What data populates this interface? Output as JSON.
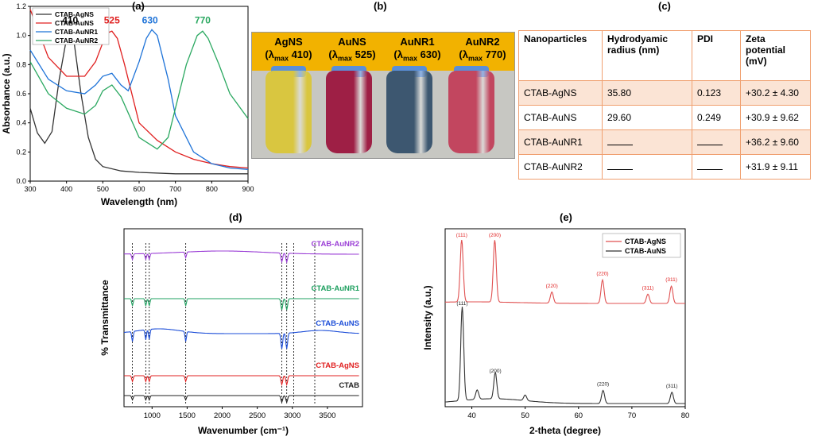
{
  "panels": {
    "a": "(a)",
    "b": "(b)",
    "c": "(c)",
    "d": "(d)",
    "e": "(e)"
  },
  "chart_data": [
    {
      "type": "line",
      "panel": "a",
      "xlabel": "Wavelength (nm)",
      "ylabel": "Absorbance (a.u.)",
      "xlim": [
        300,
        900
      ],
      "ylim": [
        0.0,
        1.2
      ],
      "xticks": [
        "300",
        "400",
        "500",
        "600",
        "700",
        "800",
        "900"
      ],
      "yticks": [
        "0.0",
        "0.2",
        "0.4",
        "0.6",
        "0.8",
        "1.0",
        "1.2"
      ],
      "legend_position": "top-left",
      "peak_labels": [
        {
          "text": "410",
          "x": 410,
          "y": 1.06,
          "color": "#000000"
        },
        {
          "text": "525",
          "x": 525,
          "y": 1.06,
          "color": "#e02020"
        },
        {
          "text": "630",
          "x": 630,
          "y": 1.06,
          "color": "#1e73d8"
        },
        {
          "text": "770",
          "x": 775,
          "y": 1.06,
          "color": "#2aa860"
        }
      ],
      "series": [
        {
          "name": "CTAB-AgNS",
          "color": "#333333",
          "x": [
            300,
            320,
            340,
            360,
            380,
            400,
            410,
            420,
            440,
            460,
            480,
            500,
            550,
            600,
            700,
            800,
            900
          ],
          "y": [
            0.5,
            0.33,
            0.26,
            0.34,
            0.7,
            0.98,
            1.03,
            0.97,
            0.6,
            0.3,
            0.15,
            0.1,
            0.07,
            0.06,
            0.05,
            0.05,
            0.05
          ]
        },
        {
          "name": "CTAB-AuNS",
          "color": "#e02020",
          "x": [
            300,
            350,
            400,
            450,
            480,
            500,
            515,
            525,
            540,
            560,
            600,
            650,
            700,
            750,
            800,
            850,
            900
          ],
          "y": [
            1.18,
            0.85,
            0.72,
            0.72,
            0.82,
            0.95,
            1.02,
            1.03,
            0.98,
            0.8,
            0.4,
            0.28,
            0.2,
            0.15,
            0.12,
            0.1,
            0.09
          ]
        },
        {
          "name": "CTAB-AuNR1",
          "color": "#1e73d8",
          "x": [
            300,
            350,
            400,
            450,
            480,
            500,
            525,
            550,
            570,
            600,
            620,
            635,
            650,
            680,
            700,
            750,
            800,
            850,
            900
          ],
          "y": [
            0.9,
            0.7,
            0.62,
            0.6,
            0.66,
            0.72,
            0.74,
            0.66,
            0.62,
            0.82,
            0.98,
            1.04,
            1.0,
            0.7,
            0.45,
            0.2,
            0.12,
            0.09,
            0.08
          ]
        },
        {
          "name": "CTAB-AuNR2",
          "color": "#2aa860",
          "x": [
            300,
            350,
            400,
            450,
            480,
            500,
            525,
            550,
            600,
            650,
            680,
            700,
            730,
            760,
            775,
            790,
            820,
            850,
            900
          ],
          "y": [
            0.82,
            0.6,
            0.5,
            0.46,
            0.52,
            0.62,
            0.66,
            0.58,
            0.3,
            0.22,
            0.3,
            0.5,
            0.8,
            1.0,
            1.03,
            0.98,
            0.8,
            0.6,
            0.43
          ]
        }
      ]
    },
    {
      "type": "line",
      "panel": "d",
      "xlabel": "Wavenumber (cm⁻¹)",
      "ylabel": "% Transmittance",
      "xlim": [
        600,
        4000
      ],
      "xticks": [
        "1000",
        "1500",
        "2000",
        "2500",
        "3000",
        "3500"
      ],
      "series_labels": [
        {
          "name": "CTAB-AuNR2",
          "color": "#9b3fd6"
        },
        {
          "name": "CTAB-AuNR1",
          "color": "#1fa060"
        },
        {
          "name": "CTAB-AuNS",
          "color": "#1e4fd8"
        },
        {
          "name": "CTAB-AgNS",
          "color": "#e02020"
        },
        {
          "name": "CTAB",
          "color": "#222222"
        }
      ],
      "reference_lines": [
        720,
        910,
        960,
        1480,
        2850,
        2920,
        3020,
        3320
      ],
      "dips": [
        720,
        910,
        960,
        1480,
        2850,
        2920
      ]
    },
    {
      "type": "line",
      "panel": "e",
      "xlabel": "2-theta (degree)",
      "ylabel": "Intensity (a.u.)",
      "xlim": [
        35,
        80
      ],
      "xticks": [
        "40",
        "50",
        "60",
        "70",
        "80"
      ],
      "legend_position": "top-right",
      "series": [
        {
          "name": "CTAB-AgNS",
          "color": "#e05050",
          "peaks": [
            [
              38.1,
              1.0
            ],
            [
              44.3,
              1.0
            ],
            [
              55.0,
              0.18
            ],
            [
              64.5,
              0.38
            ],
            [
              73.0,
              0.15
            ],
            [
              77.4,
              0.28
            ]
          ],
          "peak_labels": [
            "(111)",
            "(200)",
            "(220)",
            "(220)",
            "(311)",
            "(311)"
          ]
        },
        {
          "name": "CTAB-AuNS",
          "color": "#333333",
          "peaks": [
            [
              38.2,
              1.0
            ],
            [
              41.0,
              0.1
            ],
            [
              44.4,
              0.28
            ],
            [
              50.0,
              0.06
            ],
            [
              64.6,
              0.14
            ],
            [
              77.5,
              0.12
            ]
          ],
          "peak_labels": [
            "(111)",
            "",
            "(200)",
            "",
            "(220)",
            "(311)"
          ]
        }
      ]
    }
  ],
  "vials": {
    "labels": [
      {
        "name": "AgNS",
        "lambda": "(λ",
        "sub": "max",
        "val": " 410)"
      },
      {
        "name": "AuNS",
        "lambda": "(λ",
        "sub": "max",
        "val": "  525)"
      },
      {
        "name": "AuNR1",
        "lambda": "(λ",
        "sub": "max",
        "val": " 630)"
      },
      {
        "name": "AuNR2",
        "lambda": "(λ",
        "sub": "max",
        "val": " 770)"
      }
    ],
    "colors": [
      "#d9c640",
      "#9e1f45",
      "#3d5770",
      "#c2465f"
    ]
  },
  "table": {
    "headers": [
      "Nanoparticles",
      "Hydrodyamic radius (nm)",
      "PDI",
      "Zeta potential (mV)"
    ],
    "rows": [
      [
        "CTAB-AgNS",
        "35.80",
        "0.123",
        "+30.2 ± 4.30"
      ],
      [
        "CTAB-AuNS",
        "29.60",
        "0.249",
        "+30.9 ± 9.62"
      ],
      [
        "CTAB-AuNR1",
        "",
        "",
        "+36.2 ± 9.60"
      ],
      [
        "CTAB-AuNR2",
        "",
        "",
        "+31.9 ± 9.11"
      ]
    ]
  }
}
